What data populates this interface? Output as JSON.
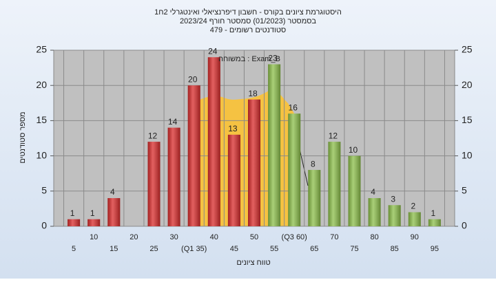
{
  "chart_data": {
    "type": "bar",
    "title": "היסטוגרמת ציונים בקורס - חשבון דיפרנציאלי ואינטגרלי 2ח1",
    "subtitle": "בסמסטר  (01/2023)  סמסטר חורף  2023/24",
    "subtitle2": "סטודנטים רשומים - 479",
    "annotation": "במשוחה : Exam_B",
    "x_label": "טווח ציונים",
    "y_label": "מספר סטודנטים",
    "categories": [
      "5",
      "10",
      "15",
      "20",
      "25",
      "30",
      "(Q1 35)",
      "40",
      "45",
      "50",
      "55",
      "(Q3 60)",
      "65",
      "70",
      "75",
      "80",
      "85",
      "90",
      "95"
    ],
    "values": [
      1,
      1,
      4,
      null,
      12,
      14,
      20,
      24,
      13,
      18,
      23,
      16,
      8,
      12,
      10,
      4,
      3,
      2,
      1
    ],
    "bar_colors": [
      "#d92b2b",
      "#d92b2b",
      "#d92b2b",
      "#d92b2b",
      "#d92b2b",
      "#d92b2b",
      "#d92b2b",
      "#d92b2b",
      "#d92b2b",
      "#d92b2b",
      "#8cbf4a",
      "#8cbf4a",
      "#8cbf4a",
      "#8cbf4a",
      "#8cbf4a",
      "#8cbf4a",
      "#8cbf4a",
      "#8cbf4a",
      "#8cbf4a"
    ],
    "ylim": [
      0,
      25
    ],
    "yticks": [
      0,
      5,
      10,
      15,
      20,
      25
    ],
    "grid": true
  }
}
